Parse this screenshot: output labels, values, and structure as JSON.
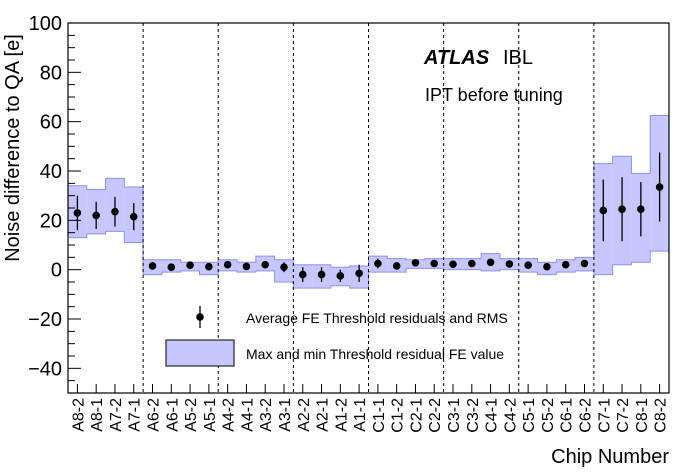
{
  "chart_data": {
    "type": "scatter",
    "title": "",
    "experiment": "ATLAS",
    "subtitle": "IBL",
    "annotation": "IPT before tuning",
    "xlabel": "Chip Number",
    "ylabel": "Noise difference to QA [e]",
    "ylim": [
      -50,
      100
    ],
    "yticks": [
      -40,
      -20,
      0,
      20,
      40,
      60,
      80,
      100
    ],
    "ytick_labels": [
      "−40",
      "−20",
      "0",
      "20",
      "40",
      "60",
      "80",
      "100"
    ],
    "grid": false,
    "legend_position": "bottom-left",
    "categories": [
      "A8-2",
      "A8-1",
      "A7-2",
      "A7-1",
      "A6-2",
      "A6-1",
      "A5-2",
      "A5-1",
      "A4-2",
      "A4-1",
      "A3-2",
      "A3-1",
      "A2-2",
      "A2-1",
      "A1-2",
      "A1-1",
      "C1-1",
      "C1-2",
      "C2-1",
      "C2-2",
      "C3-1",
      "C3-2",
      "C4-1",
      "C4-2",
      "C5-1",
      "C5-2",
      "C6-1",
      "C6-2",
      "C7-1",
      "C7-2",
      "C8-1",
      "C8-2"
    ],
    "stave_boundaries_after_index": [
      3,
      7,
      11,
      15,
      19,
      23,
      27
    ],
    "series": [
      {
        "name": "Average FE Threshold residuals and RMS",
        "style": "points_with_error_bars",
        "color": "#000000",
        "values": [
          23,
          22,
          23.5,
          21.5,
          1.5,
          1,
          1.8,
          1.2,
          2,
          1.3,
          2,
          1,
          -2,
          -2,
          -2.5,
          -1.5,
          2.5,
          1.5,
          2.8,
          2.5,
          2.2,
          2.5,
          3,
          2.3,
          1.8,
          1.2,
          2,
          2.5,
          24,
          24.5,
          24.5,
          33.5
        ],
        "errors": [
          7,
          5.5,
          6,
          5.5,
          1.5,
          1.5,
          1.2,
          1.2,
          1.5,
          1.5,
          1.5,
          2,
          3,
          3,
          2.5,
          3.5,
          2,
          1.5,
          1.2,
          1.2,
          1,
          1,
          1,
          1.2,
          1,
          1,
          1,
          1.2,
          12.5,
          13,
          11,
          14
        ]
      },
      {
        "name": "Max and min Threshold residual FE value",
        "style": "band",
        "fill": "#c7c7ff",
        "edge": "#8f8fef",
        "min": [
          13,
          14.5,
          15.5,
          11,
          -2,
          -1,
          -0.5,
          -2,
          -0.5,
          -1,
          -0.5,
          -5,
          -7.5,
          -7.5,
          -6.5,
          -7.5,
          -1,
          -1,
          0.5,
          0.5,
          0,
          0,
          -0.5,
          0,
          -1,
          -2,
          -1,
          -0.5,
          -2,
          2,
          3,
          7.5
        ],
        "max": [
          34,
          32.5,
          37,
          33.5,
          4,
          4,
          3,
          3,
          4,
          3,
          5.5,
          4,
          2,
          2,
          1,
          1.5,
          5.5,
          4.5,
          4,
          4.5,
          4.5,
          4.5,
          6.5,
          4.5,
          4.5,
          3,
          4,
          5,
          43,
          46,
          39,
          62.5
        ]
      }
    ]
  }
}
